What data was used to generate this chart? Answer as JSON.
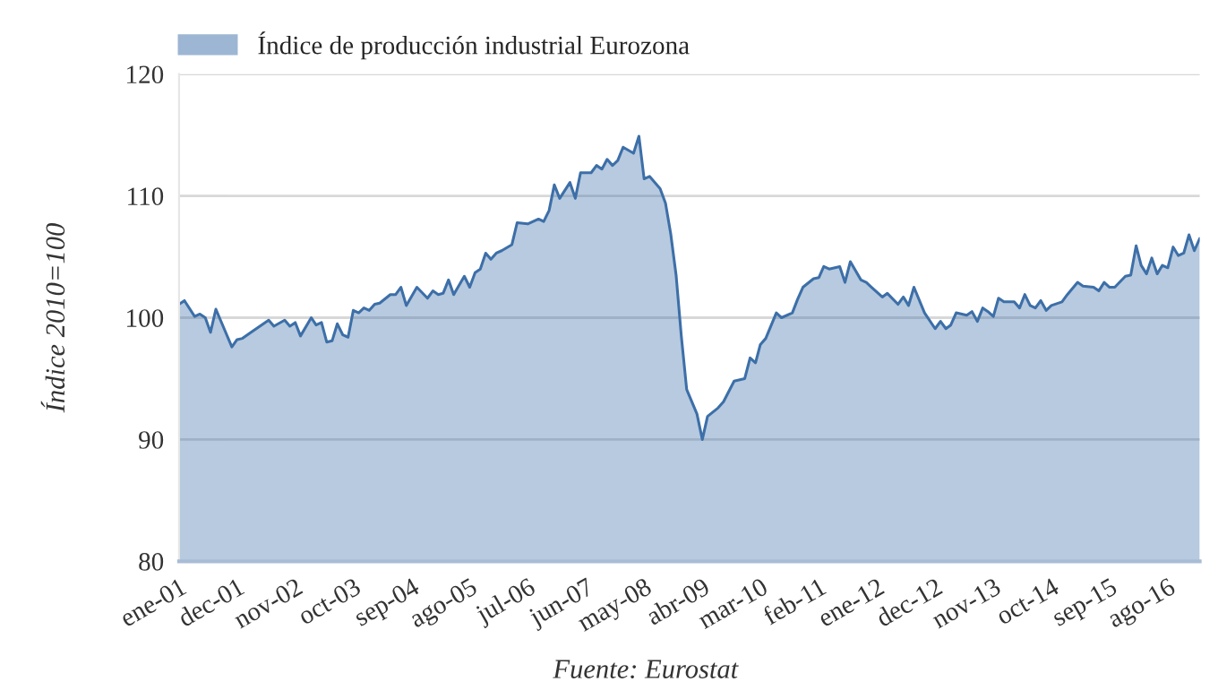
{
  "chart_data": {
    "type": "area",
    "ylabel": "Índice 2010=100",
    "annotations": [
      "Fuente: Eurostat"
    ],
    "x": [
      "2001-01",
      "2001-02",
      "2001-04",
      "2001-05",
      "2001-06",
      "2001-07",
      "2001-08",
      "2001-11",
      "2001-12",
      "2002-01",
      "2002-03",
      "2002-06",
      "2002-07",
      "2002-09",
      "2002-10",
      "2002-11",
      "2002-12",
      "2003-02",
      "2003-03",
      "2003-04",
      "2003-05",
      "2003-06",
      "2003-07",
      "2003-08",
      "2003-09",
      "2003-10",
      "2003-11",
      "2003-12",
      "2004-01",
      "2004-02",
      "2004-03",
      "2004-05",
      "2004-06",
      "2004-07",
      "2004-08",
      "2004-10",
      "2004-12",
      "2005-01",
      "2005-02",
      "2005-03",
      "2005-04",
      "2005-05",
      "2005-07",
      "2005-08",
      "2005-09",
      "2005-10",
      "2005-11",
      "2005-12",
      "2006-01",
      "2006-02",
      "2006-04",
      "2006-05",
      "2006-07",
      "2006-09",
      "2006-10",
      "2006-11",
      "2006-12",
      "2007-01",
      "2007-03",
      "2007-04",
      "2007-05",
      "2007-07",
      "2007-08",
      "2007-09",
      "2007-10",
      "2007-11",
      "2007-12",
      "2008-01",
      "2008-03",
      "2008-04",
      "2008-05",
      "2008-06",
      "2008-08",
      "2008-09",
      "2008-10",
      "2008-11",
      "2008-12",
      "2009-01",
      "2009-03",
      "2009-04",
      "2009-05",
      "2009-07",
      "2009-08",
      "2009-10",
      "2009-12",
      "2010-01",
      "2010-02",
      "2010-03",
      "2010-04",
      "2010-06",
      "2010-07",
      "2010-09",
      "2010-10",
      "2010-11",
      "2011-01",
      "2011-02",
      "2011-03",
      "2011-04",
      "2011-06",
      "2011-07",
      "2011-08",
      "2011-10",
      "2011-11",
      "2011-12",
      "2012-02",
      "2012-03",
      "2012-05",
      "2012-06",
      "2012-07",
      "2012-08",
      "2012-10",
      "2012-12",
      "2013-01",
      "2013-02",
      "2013-03",
      "2013-04",
      "2013-06",
      "2013-07",
      "2013-08",
      "2013-09",
      "2013-10",
      "2013-11",
      "2013-12",
      "2014-01",
      "2014-03",
      "2014-04",
      "2014-05",
      "2014-06",
      "2014-07",
      "2014-08",
      "2014-09",
      "2014-10",
      "2014-12",
      "2015-01",
      "2015-03",
      "2015-04",
      "2015-06",
      "2015-07",
      "2015-08",
      "2015-09",
      "2015-10",
      "2015-12",
      "2016-01",
      "2016-02",
      "2016-03",
      "2016-04",
      "2016-05",
      "2016-06",
      "2016-07",
      "2016-08",
      "2016-09",
      "2016-10",
      "2016-11",
      "2016-12",
      "2017-01",
      "2017-02"
    ],
    "series": [
      {
        "name": "Índice de producción industrial Eurozona",
        "color": "#3d6fa8",
        "values": [
          101.1,
          101.4,
          100.1,
          100.3,
          100.0,
          98.8,
          100.7,
          97.6,
          98.2,
          98.3,
          98.9,
          99.8,
          99.3,
          99.8,
          99.3,
          99.6,
          98.5,
          100.0,
          99.4,
          99.6,
          98.0,
          98.1,
          99.5,
          98.6,
          98.4,
          100.6,
          100.4,
          100.8,
          100.6,
          101.1,
          101.2,
          101.9,
          101.9,
          102.5,
          101.0,
          102.5,
          101.6,
          102.2,
          101.9,
          102.0,
          103.1,
          101.9,
          103.4,
          102.5,
          103.7,
          104.0,
          105.3,
          104.8,
          105.3,
          105.5,
          106.0,
          107.8,
          107.7,
          108.1,
          107.9,
          108.8,
          110.9,
          109.8,
          111.1,
          109.8,
          111.9,
          111.9,
          112.5,
          112.2,
          113.0,
          112.5,
          112.9,
          114.0,
          113.5,
          114.9,
          111.4,
          111.6,
          110.6,
          109.4,
          106.9,
          103.5,
          98.5,
          94.1,
          92.1,
          90.0,
          91.9,
          92.6,
          93.1,
          94.8,
          95.0,
          96.7,
          96.3,
          97.8,
          98.3,
          100.4,
          100.0,
          100.4,
          101.5,
          102.5,
          103.2,
          103.3,
          104.2,
          104.0,
          104.2,
          102.9,
          104.6,
          103.1,
          102.9,
          102.5,
          101.7,
          102.0,
          101.1,
          101.7,
          101.0,
          102.5,
          100.4,
          99.1,
          99.7,
          99.1,
          99.4,
          100.4,
          100.2,
          100.5,
          99.7,
          100.8,
          100.5,
          100.1,
          101.6,
          101.3,
          101.3,
          100.8,
          101.9,
          101.0,
          100.8,
          101.4,
          100.6,
          101.0,
          101.3,
          101.9,
          102.9,
          102.6,
          102.5,
          102.2,
          102.9,
          102.5,
          102.5,
          103.4,
          103.5,
          105.9,
          104.3,
          103.6,
          104.9,
          103.6,
          104.3,
          104.1,
          105.8,
          105.1,
          105.3,
          106.8,
          105.5,
          106.5
        ]
      }
    ],
    "xlim": [
      "2001-01",
      "2017-02"
    ],
    "xticks": [
      {
        "value": "2001-01",
        "label": "ene-01"
      },
      {
        "value": "2001-12",
        "label": "dec-01"
      },
      {
        "value": "2002-11",
        "label": "nov-02"
      },
      {
        "value": "2003-10",
        "label": "oct-03"
      },
      {
        "value": "2004-09",
        "label": "sep-04"
      },
      {
        "value": "2005-08",
        "label": "ago-05"
      },
      {
        "value": "2006-07",
        "label": "jul-06"
      },
      {
        "value": "2007-06",
        "label": "jun-07"
      },
      {
        "value": "2008-05",
        "label": "may-08"
      },
      {
        "value": "2009-04",
        "label": "abr-09"
      },
      {
        "value": "2010-03",
        "label": "mar-10"
      },
      {
        "value": "2011-02",
        "label": "feb-11"
      },
      {
        "value": "2012-01",
        "label": "ene-12"
      },
      {
        "value": "2012-12",
        "label": "dec-12"
      },
      {
        "value": "2013-11",
        "label": "nov-13"
      },
      {
        "value": "2014-10",
        "label": "oct-14"
      },
      {
        "value": "2015-09",
        "label": "sep-15"
      },
      {
        "value": "2016-08",
        "label": "ago-16"
      }
    ],
    "ylim": [
      80,
      120
    ],
    "yticks": [
      80,
      90,
      100,
      110,
      120
    ],
    "grid": "y",
    "legend": "top left"
  }
}
